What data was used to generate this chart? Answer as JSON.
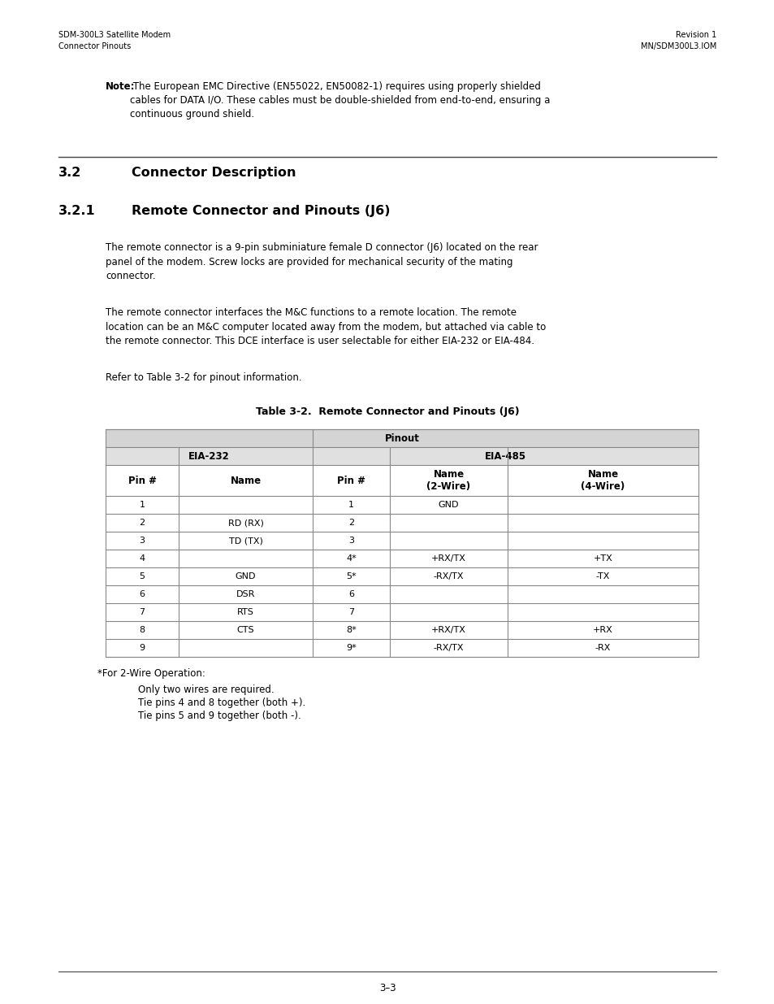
{
  "header_left_line1": "SDM-300L3 Satellite Modem",
  "header_left_line2": "Connector Pinouts",
  "header_right_line1": "Revision 1",
  "header_right_line2": "MN/SDM300L3.IOM",
  "note_bold": "Note:",
  "note_rest": " The European EMC Directive (EN55022, EN50082-1) requires using properly shielded\ncables for DATA I/O. These cables must be double-shielded from end-to-end, ensuring a\ncontinuous ground shield.",
  "section_num": "3.2",
  "section_title": "Connector Description",
  "subsection_num": "3.2.1",
  "subsection_title": "Remote Connector and Pinouts (J6)",
  "para1": "The remote connector is a 9-pin subminiature female D connector (J6) located on the rear\npanel of the modem. Screw locks are provided for mechanical security of the mating\nconnector.",
  "para2": "The remote connector interfaces the M&C functions to a remote location. The remote\nlocation can be an M&C computer located away from the modem, but attached via cable to\nthe remote connector. This DCE interface is user selectable for either EIA-232 or EIA-484.",
  "refer_text": "Refer to Table 3-2 for pinout information.",
  "table_title": "Table 3-2.  Remote Connector and Pinouts (J6)",
  "table_header_row2": [
    "Pin #",
    "Name",
    "Pin #",
    "Name\n(2-Wire)",
    "Name\n(4-Wire)"
  ],
  "table_rows": [
    [
      "1",
      "",
      "1",
      "GND",
      ""
    ],
    [
      "2",
      "RD (RX)",
      "2",
      "",
      ""
    ],
    [
      "3",
      "TD (TX)",
      "3",
      "",
      ""
    ],
    [
      "4",
      "",
      "4*",
      "+RX/TX",
      "+TX"
    ],
    [
      "5",
      "GND",
      "5*",
      "-RX/TX",
      "-TX"
    ],
    [
      "6",
      "DSR",
      "6",
      "",
      ""
    ],
    [
      "7",
      "RTS",
      "7",
      "",
      ""
    ],
    [
      "8",
      "CTS",
      "8*",
      "+RX/TX",
      "+RX"
    ],
    [
      "9",
      "",
      "9*",
      "-RX/TX",
      "-RX"
    ]
  ],
  "footnote_line1": "*For 2-Wire Operation:",
  "footnote_line2": "Only two wires are required.",
  "footnote_line3": "Tie pins 4 and 8 together (both +).",
  "footnote_line4": "Tie pins 5 and 9 together (both -).",
  "footer_text": "3–3",
  "bg_color": "#ffffff",
  "text_color": "#000000",
  "grid_color": "#888888",
  "header_gray": "#d4d4d4",
  "subheader_gray": "#e0e0e0"
}
